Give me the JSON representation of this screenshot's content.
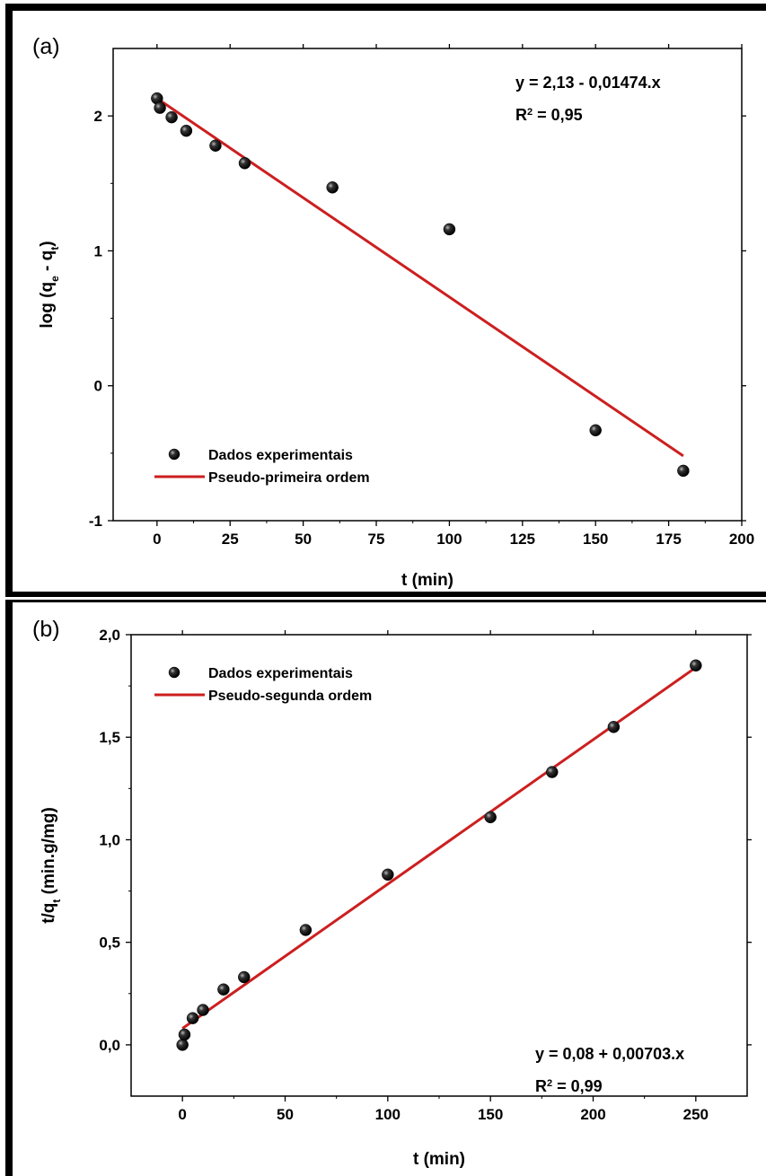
{
  "chart_data": [
    {
      "type": "scatter",
      "panel_label": "(a)",
      "xlabel": "t (min)",
      "ylabel": "log (q_e - q_t)",
      "xlim": [
        -15,
        200
      ],
      "ylim": [
        -1,
        2.5
      ],
      "xticks": [
        0,
        25,
        50,
        75,
        100,
        125,
        150,
        175,
        200
      ],
      "xtick_labels": [
        "0",
        "25",
        "50",
        "75",
        "100",
        "125",
        "150",
        "175",
        "200"
      ],
      "yticks": [
        -1,
        0,
        1,
        2
      ],
      "ytick_labels": [
        "-1",
        "0",
        "1",
        "2"
      ],
      "series": [
        {
          "name": "Dados experimentais",
          "kind": "points",
          "x": [
            0,
            1,
            5,
            10,
            20,
            30,
            60,
            100,
            150,
            180
          ],
          "y": [
            2.13,
            2.06,
            1.99,
            1.89,
            1.78,
            1.65,
            1.47,
            1.16,
            -0.33,
            -0.63
          ]
        },
        {
          "name": "Pseudo-primeira ordem",
          "kind": "line",
          "x": [
            0,
            180
          ],
          "y": [
            2.13,
            -0.52
          ]
        }
      ],
      "equation": "y = 2,13 - 0,01474.x",
      "r2_label": "R",
      "r2_sup": "2",
      "r2_value": " = 0,95",
      "legend_position": "bottom-left",
      "colors": {
        "points": "#111111",
        "line": "#cc1f1f"
      }
    },
    {
      "type": "scatter",
      "panel_label": "(b)",
      "xlabel": "t (min)",
      "ylabel": "t/q_t (min.g/mg)",
      "xlim": [
        -25,
        275
      ],
      "ylim": [
        -0.25,
        2.0
      ],
      "xticks": [
        0,
        50,
        100,
        150,
        200,
        250
      ],
      "xtick_labels": [
        "0",
        "50",
        "100",
        "150",
        "200",
        "250"
      ],
      "yticks": [
        0,
        0.5,
        1.0,
        1.5,
        2.0
      ],
      "ytick_labels": [
        "0,0",
        "0,5",
        "1,0",
        "1,5",
        "2,0"
      ],
      "series": [
        {
          "name": "Dados experimentais",
          "kind": "points",
          "x": [
            0,
            1,
            5,
            10,
            20,
            30,
            60,
            100,
            150,
            180,
            210,
            250
          ],
          "y": [
            0.0,
            0.05,
            0.13,
            0.17,
            0.27,
            0.33,
            0.56,
            0.83,
            1.11,
            1.33,
            1.55,
            1.85
          ]
        },
        {
          "name": "Pseudo-segunda ordem",
          "kind": "line",
          "x": [
            0,
            250
          ],
          "y": [
            0.08,
            1.84
          ]
        }
      ],
      "equation": "y = 0,08 + 0,00703.x",
      "r2_label": "R",
      "r2_sup": "2",
      "r2_value": " = 0,99",
      "legend_position": "top-left",
      "colors": {
        "points": "#111111",
        "line": "#cc1f1f"
      }
    }
  ]
}
